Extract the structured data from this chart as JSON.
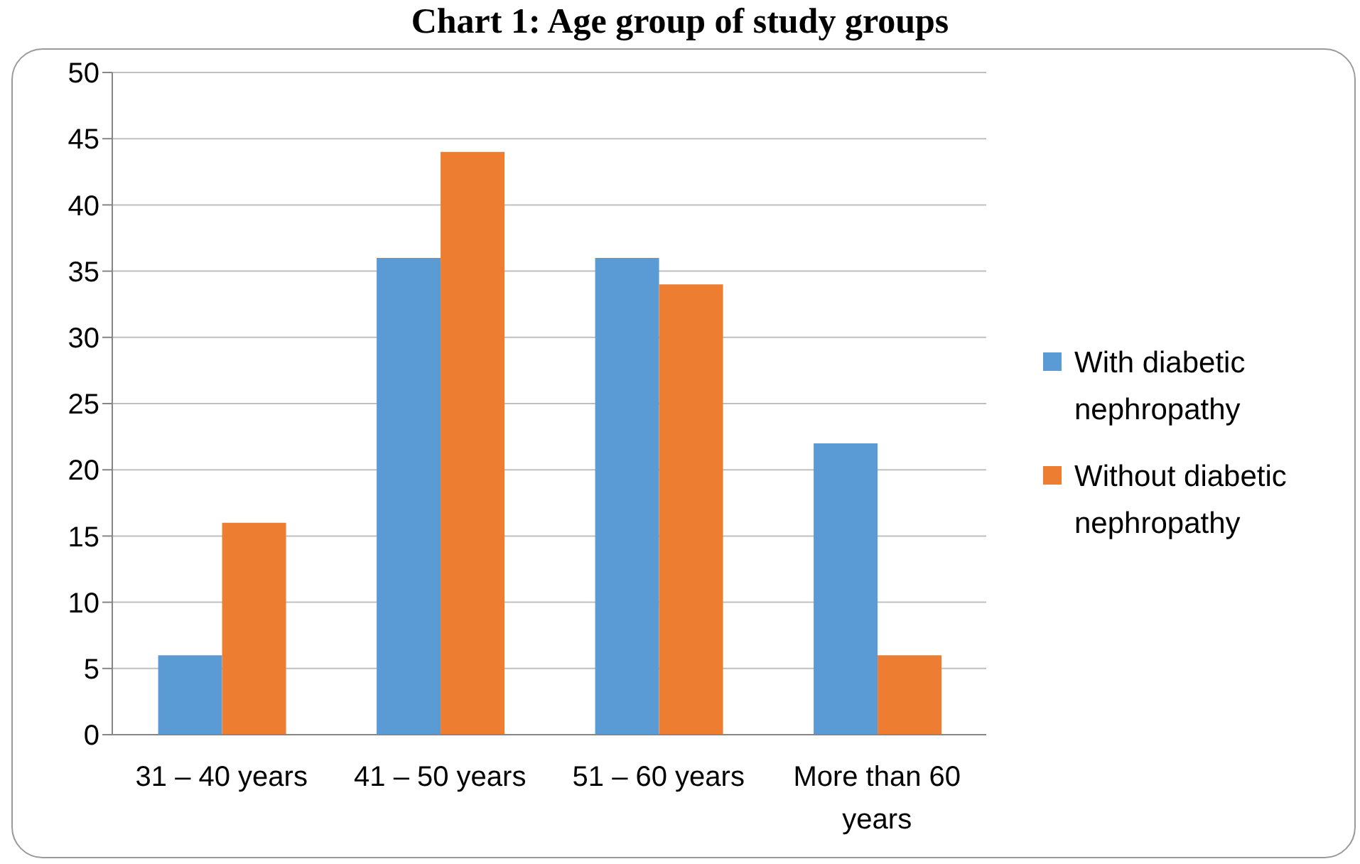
{
  "chart_data": {
    "type": "bar",
    "title": "Chart 1: Age group of study groups",
    "categories": [
      "31 – 40 years",
      "41 – 50 years",
      "51 – 60 years",
      "More than 60 years"
    ],
    "series": [
      {
        "name": "With diabetic nephropathy",
        "color": "#5b9bd5",
        "values": [
          6,
          36,
          36,
          22
        ]
      },
      {
        "name": "Without diabetic nephropathy",
        "color": "#ed7d31",
        "values": [
          16,
          44,
          34,
          6
        ]
      }
    ],
    "ylim": [
      0,
      50
    ],
    "yticks": [
      0,
      5,
      10,
      15,
      20,
      25,
      30,
      35,
      40,
      45,
      50
    ],
    "grid": "y",
    "legend": "right"
  }
}
